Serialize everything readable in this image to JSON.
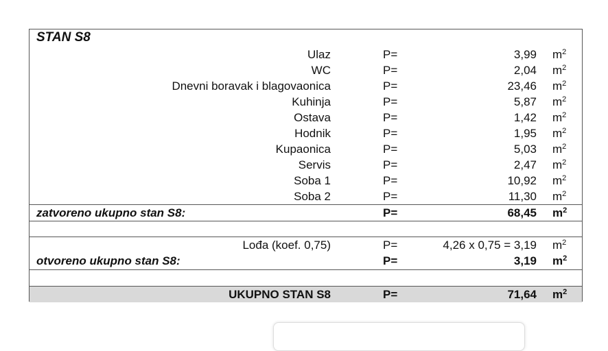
{
  "title": "STAN  S8",
  "p_label": "P=",
  "unit": "m",
  "unit_exp": "2",
  "rooms": [
    {
      "name": "Ulaz",
      "area": "3,99"
    },
    {
      "name": "WC",
      "area": "2,04"
    },
    {
      "name": "Dnevni boravak i blagovaonica",
      "area": "23,46"
    },
    {
      "name": "Kuhinja",
      "area": "5,87"
    },
    {
      "name": "Ostava",
      "area": "1,42"
    },
    {
      "name": "Hodnik",
      "area": "1,95"
    },
    {
      "name": "Kupaonica",
      "area": "5,03"
    },
    {
      "name": "Servis",
      "area": "2,47"
    },
    {
      "name": "Soba 1",
      "area": "10,92"
    },
    {
      "name": "Soba 2",
      "area": "11,30"
    }
  ],
  "closed_total": {
    "label": "zatvoreno ukupno stan S8:",
    "area": "68,45"
  },
  "loggia": {
    "label": "Lođa (koef. 0,75)",
    "area": "4,26 x 0,75 = 3,19"
  },
  "open_total": {
    "label": "otvoreno ukupno stan S8:",
    "area": "3,19"
  },
  "grand_total": {
    "label": "UKUPNO  STAN  S8",
    "area": "71,64"
  }
}
